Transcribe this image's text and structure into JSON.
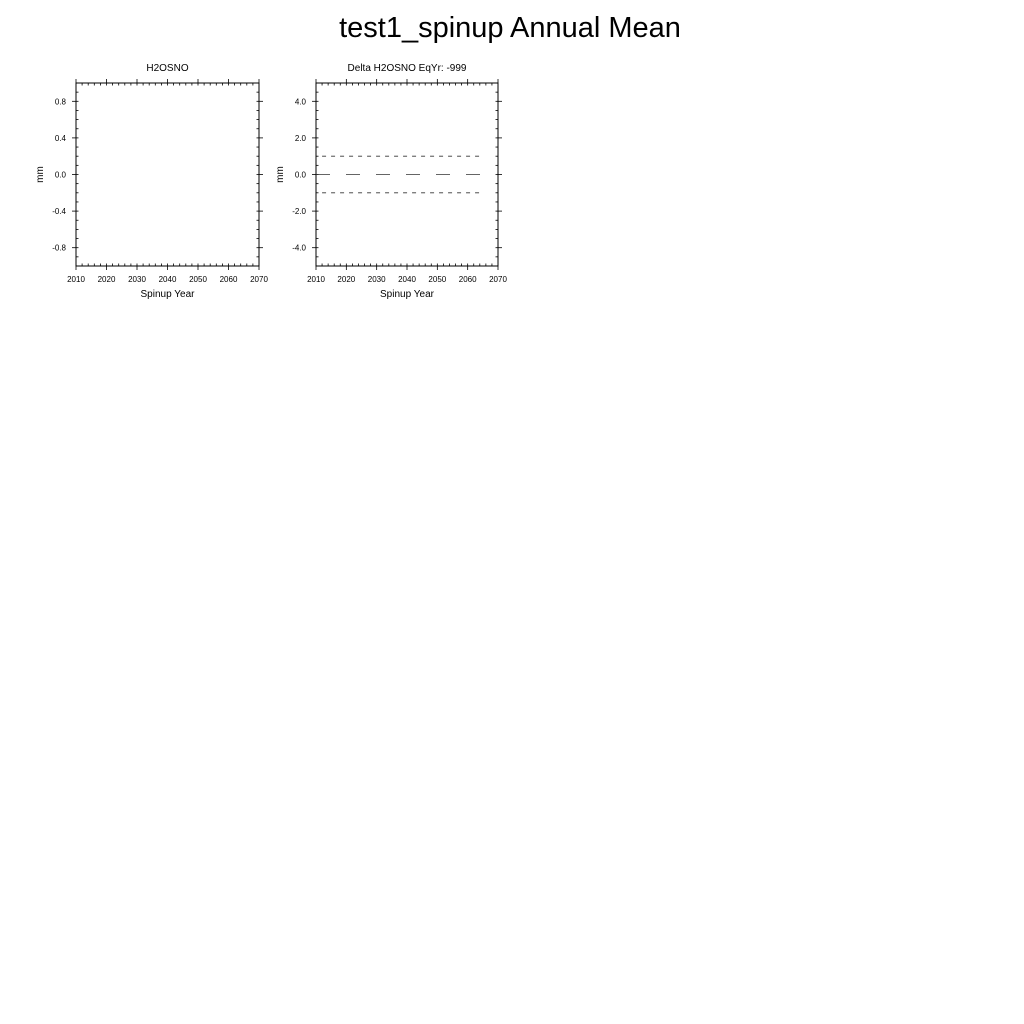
{
  "page": {
    "title": "test1_spinup Annual Mean"
  },
  "chart_data": [
    {
      "type": "line",
      "title": "H2OSNO",
      "xlabel": "Spinup Year",
      "ylabel": "mm",
      "xlim": [
        2010,
        2070
      ],
      "ylim": [
        -1.0,
        1.0
      ],
      "x_ticks": [
        2010,
        2020,
        2030,
        2040,
        2050,
        2060,
        2070
      ],
      "x_tick_labels": [
        "2010",
        "2020",
        "2030",
        "2040",
        "2050",
        "2060",
        "2070"
      ],
      "y_ticks": [
        -0.8,
        -0.4,
        0.0,
        0.4,
        0.8
      ],
      "y_tick_labels": [
        "-0.8",
        "-0.4",
        "0.0",
        "0.4",
        "0.8"
      ],
      "x_minor_step": 2,
      "y_minor_step": 0.1,
      "series": [],
      "reference_lines": []
    },
    {
      "type": "line",
      "title": "Delta H2OSNO EqYr: -999",
      "xlabel": "Spinup Year",
      "ylabel": "mm",
      "xlim": [
        2010,
        2070
      ],
      "ylim": [
        -5.0,
        5.0
      ],
      "x_ticks": [
        2010,
        2020,
        2030,
        2040,
        2050,
        2060,
        2070
      ],
      "x_tick_labels": [
        "2010",
        "2020",
        "2030",
        "2040",
        "2050",
        "2060",
        "2070"
      ],
      "y_ticks": [
        -4.0,
        -2.0,
        0.0,
        2.0,
        4.0
      ],
      "y_tick_labels": [
        "-4.0",
        "-2.0",
        "0.0",
        "2.0",
        "4.0"
      ],
      "x_minor_step": 2,
      "y_minor_step": 0.5,
      "series": [],
      "reference_lines": [
        {
          "y": 1.0,
          "x": [
            2012,
            2065
          ],
          "style": "short-dash"
        },
        {
          "y": 0.0,
          "x": [
            2010,
            2065
          ],
          "style": "long-dash"
        },
        {
          "y": -1.0,
          "x": [
            2012,
            2065
          ],
          "style": "short-dash"
        }
      ]
    }
  ]
}
